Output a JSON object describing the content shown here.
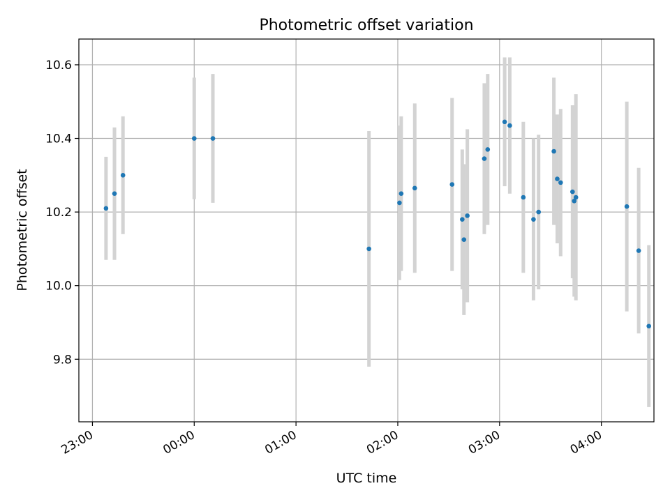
{
  "chart_data": {
    "type": "scatter",
    "title": "Photometric offset variation",
    "xlabel": "UTC time",
    "ylabel": "Photometric offset",
    "x_ticks": [
      "23:00",
      "00:00",
      "01:00",
      "02:00",
      "03:00",
      "04:00"
    ],
    "y_ticks": [
      "9.8",
      "10.0",
      "10.2",
      "10.4",
      "10.6"
    ],
    "x_tick_values": [
      -60,
      0,
      60,
      120,
      180,
      240
    ],
    "y_tick_values": [
      9.8,
      10.0,
      10.2,
      10.4,
      10.6
    ],
    "xlim": [
      "22:52",
      "04:31"
    ],
    "ylim": [
      9.63,
      10.67
    ],
    "grid": true,
    "colors": {
      "point": "#1f77b4",
      "errorbar": "#d3d3d3",
      "grid": "#b0b0b0"
    },
    "points": [
      {
        "x": "23:08",
        "y": 10.21,
        "yerr": 0.14
      },
      {
        "x": "23:13",
        "y": 10.25,
        "yerr": 0.18
      },
      {
        "x": "23:18",
        "y": 10.3,
        "yerr": 0.16
      },
      {
        "x": "00:00",
        "y": 10.4,
        "yerr": 0.165
      },
      {
        "x": "00:11",
        "y": 10.4,
        "yerr": 0.175
      },
      {
        "x": "01:43",
        "y": 10.1,
        "yerr": 0.32
      },
      {
        "x": "02:01",
        "y": 10.225,
        "yerr": 0.21
      },
      {
        "x": "02:02",
        "y": 10.25,
        "yerr": 0.21
      },
      {
        "x": "02:10",
        "y": 10.265,
        "yerr": 0.23
      },
      {
        "x": "02:32",
        "y": 10.275,
        "yerr": 0.235
      },
      {
        "x": "02:38",
        "y": 10.18,
        "yerr": 0.19
      },
      {
        "x": "02:39",
        "y": 10.125,
        "yerr": 0.205
      },
      {
        "x": "02:41",
        "y": 10.19,
        "yerr": 0.235
      },
      {
        "x": "02:51",
        "y": 10.345,
        "yerr": 0.205
      },
      {
        "x": "02:53",
        "y": 10.37,
        "yerr": 0.205
      },
      {
        "x": "03:03",
        "y": 10.445,
        "yerr": 0.175
      },
      {
        "x": "03:06",
        "y": 10.435,
        "yerr": 0.185
      },
      {
        "x": "03:14",
        "y": 10.24,
        "yerr": 0.205
      },
      {
        "x": "03:20",
        "y": 10.18,
        "yerr": 0.22
      },
      {
        "x": "03:23",
        "y": 10.2,
        "yerr": 0.21
      },
      {
        "x": "03:32",
        "y": 10.365,
        "yerr": 0.2
      },
      {
        "x": "03:34",
        "y": 10.29,
        "yerr": 0.175
      },
      {
        "x": "03:36",
        "y": 10.28,
        "yerr": 0.2
      },
      {
        "x": "03:43",
        "y": 10.255,
        "yerr": 0.235
      },
      {
        "x": "03:44",
        "y": 10.23,
        "yerr": 0.26
      },
      {
        "x": "03:45",
        "y": 10.24,
        "yerr": 0.28
      },
      {
        "x": "04:15",
        "y": 10.215,
        "yerr": 0.285
      },
      {
        "x": "04:22",
        "y": 10.095,
        "yerr": 0.225
      },
      {
        "x": "04:28",
        "y": 9.89,
        "yerr": 0.22
      }
    ]
  }
}
